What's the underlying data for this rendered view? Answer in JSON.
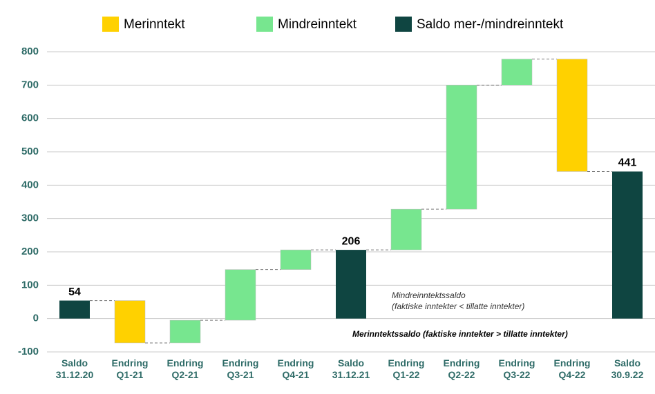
{
  "chart_data": {
    "type": "waterfall",
    "categories": [
      "Saldo 31.12.20",
      "Endring Q1-21",
      "Endring Q2-21",
      "Endring Q3-21",
      "Endring Q4-21",
      "Saldo 31.12.21",
      "Endring Q1-22",
      "Endring Q2-22",
      "Endring Q3-22",
      "Endring Q4-22",
      "Saldo 30.9.22"
    ],
    "values": [
      54,
      -127,
      68,
      152,
      59,
      206,
      122,
      372,
      78,
      -337,
      441
    ],
    "measures": [
      "total",
      "relative",
      "relative",
      "relative",
      "relative",
      "total",
      "relative",
      "relative",
      "relative",
      "relative",
      "total"
    ],
    "legend": [
      {
        "name": "Merinntekt",
        "measure": "decrease",
        "color": "#ffd100"
      },
      {
        "name": "Mindreinntekt",
        "measure": "increase",
        "color": "#77e68f"
      },
      {
        "name": "Saldo mer-/mindreinntekt",
        "measure": "total",
        "color": "#0f4541"
      }
    ],
    "ylim": [
      -100,
      800
    ],
    "yticks": [
      -100,
      0,
      100,
      200,
      300,
      400,
      500,
      600,
      700,
      800
    ],
    "grid": true,
    "annotations": [
      "Mindreinntektssaldo",
      "(faktiske inntekter < tillatte inntekter)",
      "Merinntektssaldo  (faktiske inntekter > tillatte inntekter)"
    ]
  }
}
